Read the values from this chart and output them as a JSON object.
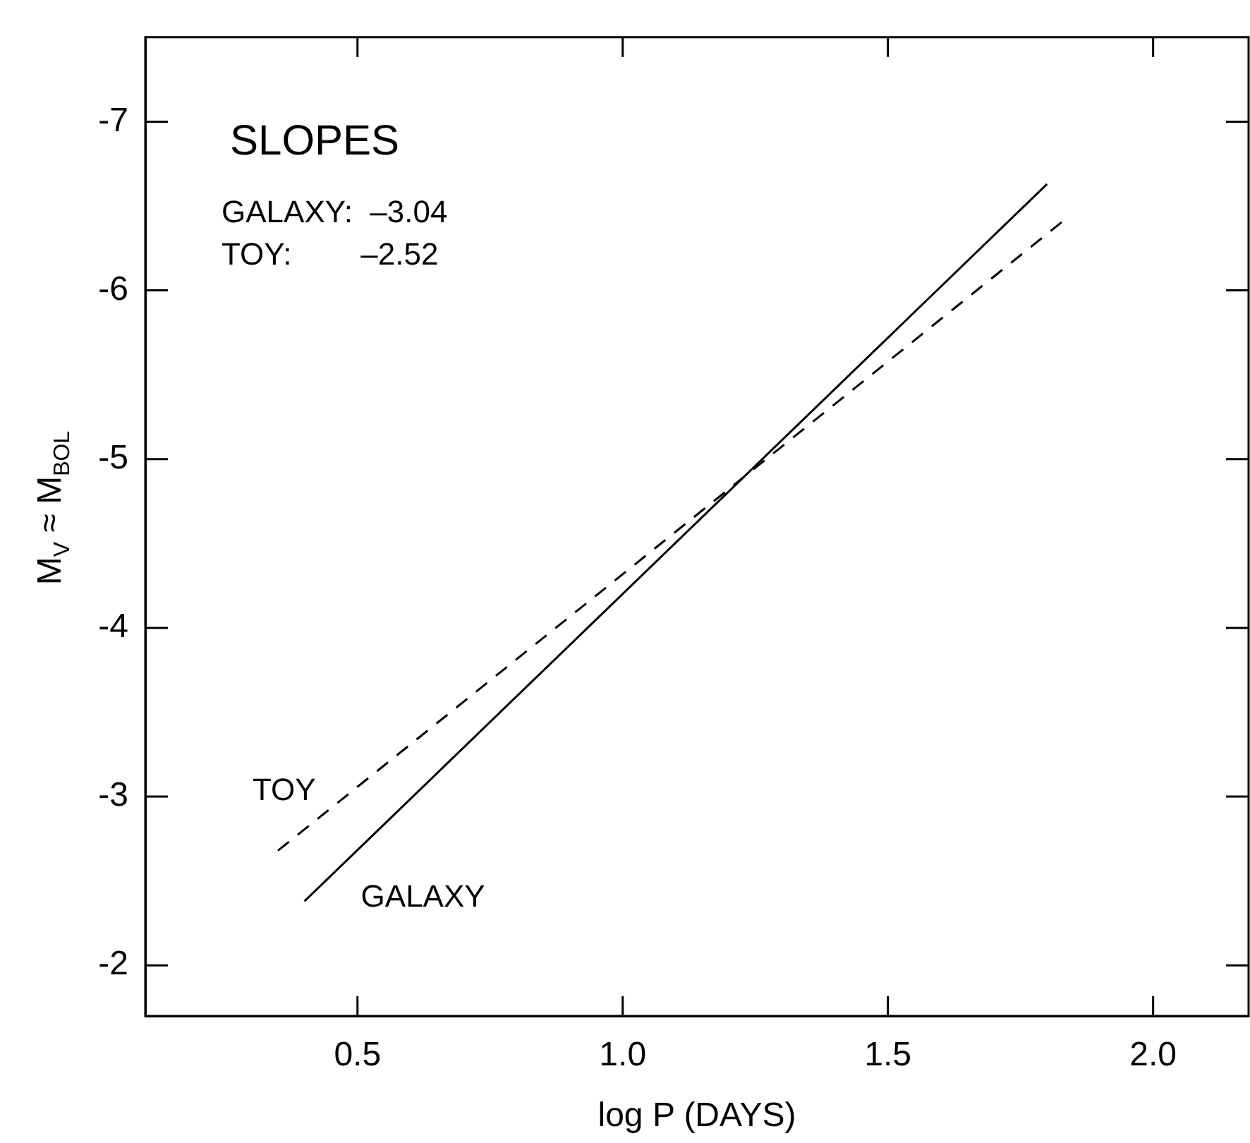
{
  "chart_data": {
    "type": "line",
    "xlabel": "log P (DAYS)",
    "ylabel": "M$_{V}$ ≈ M$_{BOL}$",
    "xlim": [
      0.1,
      2.18
    ],
    "xticks": [
      {
        "value": 0.5,
        "label": "0.5"
      },
      {
        "value": 1,
        "label": "1.0"
      },
      {
        "value": 1.5,
        "label": "1.5"
      },
      {
        "value": 2,
        "label": "2.0"
      }
    ],
    "ylim": [
      -1.7,
      -7.5
    ],
    "yticks": [
      -2,
      -3,
      -4,
      -5,
      -6,
      -7
    ],
    "series": [
      {
        "name": "GALAXY",
        "color": "#000000",
        "line_style": "solid",
        "x": [
          0.4,
          1.8
        ],
        "values": [
          -2.38,
          -6.63
        ]
      },
      {
        "name": "TOY",
        "color": "#000000",
        "line_style": "dashed",
        "x": [
          0.35,
          1.83
        ],
        "values": [
          -2.68,
          -6.41
        ]
      }
    ],
    "annotations": [
      "SLOPES",
      "GALAXY:  –3.04",
      "TOY:        –2.52"
    ],
    "marker": "none",
    "legend": false,
    "grid": false
  }
}
